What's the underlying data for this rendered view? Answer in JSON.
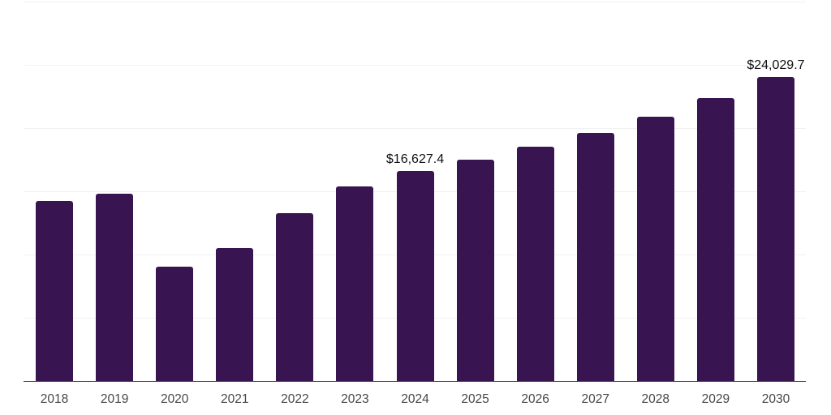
{
  "chart_data": {
    "type": "bar",
    "title": "",
    "xlabel": "",
    "ylabel": "",
    "categories": [
      "2018",
      "2019",
      "2020",
      "2021",
      "2022",
      "2023",
      "2024",
      "2025",
      "2026",
      "2027",
      "2028",
      "2029",
      "2030"
    ],
    "values": [
      14230,
      14810,
      9040,
      10510,
      13270,
      15380,
      16627.4,
      17500,
      18530,
      19620,
      20900,
      22370,
      24029.7
    ],
    "data_labels": [
      "",
      "",
      "",
      "",
      "",
      "",
      "$16,627.4",
      "",
      "",
      "",
      "",
      "",
      "$24,029.7"
    ],
    "ylim": [
      0,
      30000
    ],
    "gridline_interval": 5000,
    "grid": "horizontal",
    "legend": "none",
    "y_axis_labels_visible": false,
    "colors": {
      "bar": "#381450",
      "gridline": "#f0f0f1",
      "axis_line": "#333333",
      "tick_label": "#474747",
      "data_label": "#111111",
      "background": "#ffffff"
    }
  }
}
